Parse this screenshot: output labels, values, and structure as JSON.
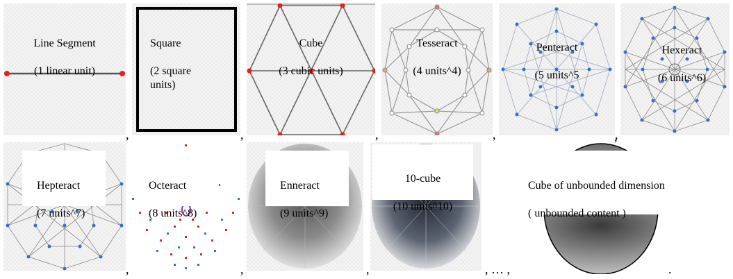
{
  "row1": [
    {
      "name": "Line Segment",
      "measure": "(1 linear unit)"
    },
    {
      "name": "Square",
      "measure": "(2 square\nunits)"
    },
    {
      "name": "Cube",
      "measure": "(3 cubic units)"
    },
    {
      "name": "Tesseract",
      "measure": "(4 units^4)"
    },
    {
      "name": "Penteract",
      "measure": "(5 units^5"
    },
    {
      "name": "Hexeract",
      "measure": "(6 units^6)"
    }
  ],
  "row2": [
    {
      "name": "Hepteract",
      "measure": "(7 units^7)"
    },
    {
      "name": "Octeract",
      "measure": "(8 units^8)"
    },
    {
      "name": "Enneract",
      "measure": "(9 units^9)"
    },
    {
      "name": "10-cube",
      "measure": "(10 units^10)"
    }
  ],
  "final": {
    "name": "Cube of unbounded dimension",
    "measure": "( unbounded content )"
  },
  "separators": {
    "comma": ",",
    "ellipsis": "…",
    "period": "."
  },
  "colors": {
    "edge_gray": "#7f7f7f",
    "vertex_red": "#e8201c",
    "vertex_blue": "#3a6fc4",
    "tile_bg": "#f3f3f3"
  }
}
